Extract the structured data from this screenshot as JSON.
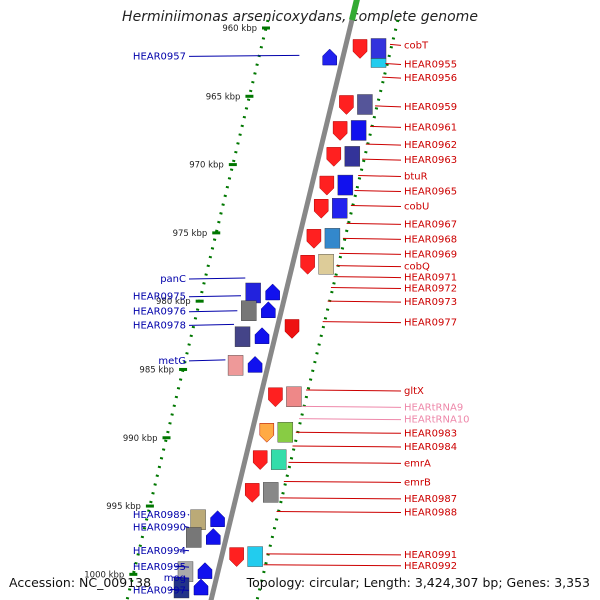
{
  "title": "Herminiimonas arsenicoxydans, complete genome",
  "accession": "Accession: NC_009138",
  "topology": "Topology: circular; Length: 3,424,307 bp; Genes: 3,353",
  "colors": {
    "forward": "#ff0000",
    "reverse": "#0000ff",
    "forward_label": "#cc0000",
    "reverse_label": "#0000aa",
    "trna_label": "#ee88aa",
    "tick": "#007700",
    "backbone": "#888888"
  },
  "scale_ticks": [
    {
      "label": "960 kbp",
      "kbp": 960
    },
    {
      "label": "965 kbp",
      "kbp": 965
    },
    {
      "label": "970 kbp",
      "kbp": 970
    },
    {
      "label": "975 kbp",
      "kbp": 975
    },
    {
      "label": "980 kbp",
      "kbp": 980
    },
    {
      "label": "985 kbp",
      "kbp": 985
    },
    {
      "label": "990 kbp",
      "kbp": 990
    },
    {
      "label": "995 kbp",
      "kbp": 995
    },
    {
      "label": "1000 kbp",
      "kbp": 1000
    }
  ],
  "genes_right": [
    {
      "label": "cobT",
      "kbp": 961.2
    },
    {
      "label": "HEAR0955",
      "kbp": 962.6
    },
    {
      "label": "HEAR0956",
      "kbp": 963.6
    },
    {
      "label": "HEAR0959",
      "kbp": 965.7
    },
    {
      "label": "HEAR0961",
      "kbp": 967.2
    },
    {
      "label": "HEAR0962",
      "kbp": 968.5
    },
    {
      "label": "HEAR0963",
      "kbp": 969.6
    },
    {
      "label": "btuR",
      "kbp": 970.8
    },
    {
      "label": "HEAR0965",
      "kbp": 971.9
    },
    {
      "label": "cobU",
      "kbp": 973.0
    },
    {
      "label": "HEAR0967",
      "kbp": 974.3
    },
    {
      "label": "HEAR0968",
      "kbp": 975.4
    },
    {
      "label": "HEAR0969",
      "kbp": 976.5
    },
    {
      "label": "cobQ",
      "kbp": 977.4
    },
    {
      "label": "HEAR0971",
      "kbp": 978.2
    },
    {
      "label": "HEAR0972",
      "kbp": 979.0
    },
    {
      "label": "HEAR0973",
      "kbp": 980.0
    },
    {
      "label": "HEAR0977",
      "kbp": 981.5
    },
    {
      "label": "gltX",
      "kbp": 986.5
    },
    {
      "label": "HEARtRNA9",
      "kbp": 987.7,
      "trna": true
    },
    {
      "label": "HEARtRNA10",
      "kbp": 988.6,
      "trna": true
    },
    {
      "label": "HEAR0983",
      "kbp": 989.6
    },
    {
      "label": "HEAR0984",
      "kbp": 990.6
    },
    {
      "label": "emrA",
      "kbp": 991.8
    },
    {
      "label": "emrB",
      "kbp": 993.2
    },
    {
      "label": "HEAR0987",
      "kbp": 994.4
    },
    {
      "label": "HEAR0988",
      "kbp": 995.4
    },
    {
      "label": "HEAR0991",
      "kbp": 998.5
    },
    {
      "label": "HEAR0992",
      "kbp": 999.3
    }
  ],
  "genes_left": [
    {
      "label": "HEAR0957",
      "kbp": 962.0
    },
    {
      "label": "panC",
      "kbp": 978.3
    },
    {
      "label": "HEAR0975",
      "kbp": 979.6
    },
    {
      "label": "HEAR0976",
      "kbp": 980.7
    },
    {
      "label": "HEAR0978",
      "kbp": 981.7
    },
    {
      "label": "metG",
      "kbp": 984.3
    },
    {
      "label": "HEAR0989",
      "kbp": 995.6
    },
    {
      "label": "HEAR0990",
      "kbp": 996.5
    },
    {
      "label": "HEAR0994",
      "kbp": 998.2
    },
    {
      "label": "HEAR0995",
      "kbp": 999.4
    },
    {
      "label": "mog",
      "kbp": 1000.2
    },
    {
      "label": "HEAR0997",
      "kbp": 1001.1
    }
  ],
  "features_forward": [
    {
      "kbp": 961.5,
      "arrow": "#ff2020",
      "box": "#3333dd",
      "box2": "#22ccee"
    },
    {
      "kbp": 965.6,
      "arrow": "#ff2020",
      "box": "#555599"
    },
    {
      "kbp": 967.5,
      "arrow": "#ff2020",
      "box": "#1111ee"
    },
    {
      "kbp": 969.4,
      "arrow": "#ff2020",
      "box": "#333399"
    },
    {
      "kbp": 971.5,
      "arrow": "#ff2020",
      "box": "#1111ee"
    },
    {
      "kbp": 973.2,
      "arrow": "#ff2020",
      "box": "#2222ee"
    },
    {
      "kbp": 975.4,
      "arrow": "#ff2020",
      "box": "#3388cc"
    },
    {
      "kbp": 977.3,
      "arrow": "#ff2020",
      "box": "#ddcc99"
    },
    {
      "kbp": 982.0,
      "arrow": "#ee1111"
    },
    {
      "kbp": 987.0,
      "arrow": "#ff2020",
      "box": "#ee8888"
    },
    {
      "kbp": 989.6,
      "arrow": "#ffaa44",
      "box": "#88cc44"
    },
    {
      "kbp": 991.6,
      "arrow": "#ff2020",
      "box": "#33ddaa"
    },
    {
      "kbp": 994.0,
      "arrow": "#ff2020",
      "box": "#888888"
    },
    {
      "kbp": 998.7,
      "arrow": "#ff2020",
      "box": "#22ccee"
    }
  ],
  "features_reverse": [
    {
      "kbp": 962.2,
      "arrow": "#2222ee"
    },
    {
      "kbp": 979.4,
      "arrow": "#1111ee",
      "box": "#2222dd"
    },
    {
      "kbp": 980.7,
      "arrow": "#1111ee",
      "box": "#777777"
    },
    {
      "kbp": 982.6,
      "arrow": "#1111ee",
      "box": "#444488"
    },
    {
      "kbp": 984.7,
      "arrow": "#1111ee",
      "box": "#ee9999"
    },
    {
      "kbp": 996.0,
      "arrow": "#1111ee",
      "box": "#bbaa77"
    },
    {
      "kbp": 997.3,
      "arrow": "#1111ee",
      "box": "#777777"
    },
    {
      "kbp": 999.8,
      "arrow": "#1111ee",
      "box": "#aaaaaa"
    },
    {
      "kbp": 1001.0,
      "arrow": "#1111ee",
      "box": "#223388"
    }
  ]
}
